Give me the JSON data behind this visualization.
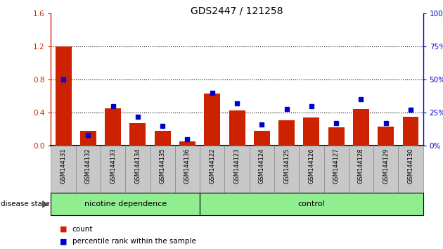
{
  "title": "GDS2447 / 121258",
  "categories": [
    "GSM144131",
    "GSM144132",
    "GSM144133",
    "GSM144134",
    "GSM144135",
    "GSM144136",
    "GSM144122",
    "GSM144123",
    "GSM144124",
    "GSM144125",
    "GSM144126",
    "GSM144127",
    "GSM144128",
    "GSM144129",
    "GSM144130"
  ],
  "count_values": [
    1.2,
    0.18,
    0.45,
    0.27,
    0.18,
    0.05,
    0.63,
    0.43,
    0.18,
    0.31,
    0.34,
    0.22,
    0.44,
    0.23,
    0.35
  ],
  "percentile_values": [
    50,
    8,
    30,
    22,
    15,
    5,
    40,
    32,
    16,
    28,
    30,
    17,
    35,
    17,
    27
  ],
  "ylim_left": [
    0,
    1.6
  ],
  "ylim_right": [
    0,
    100
  ],
  "yticks_left": [
    0,
    0.4,
    0.8,
    1.2,
    1.6
  ],
  "yticks_right": [
    0,
    25,
    50,
    75,
    100
  ],
  "grid_lines": [
    0.4,
    0.8,
    1.2
  ],
  "bar_color": "#cc2200",
  "dot_color": "#0000cc",
  "group1_label": "nicotine dependence",
  "group2_label": "control",
  "group1_count": 6,
  "group2_count": 9,
  "group_bg": "#90ee90",
  "tick_bg": "#c8c8c8",
  "legend_count": "count",
  "legend_pct": "percentile rank within the sample",
  "disease_state_label": "disease state"
}
